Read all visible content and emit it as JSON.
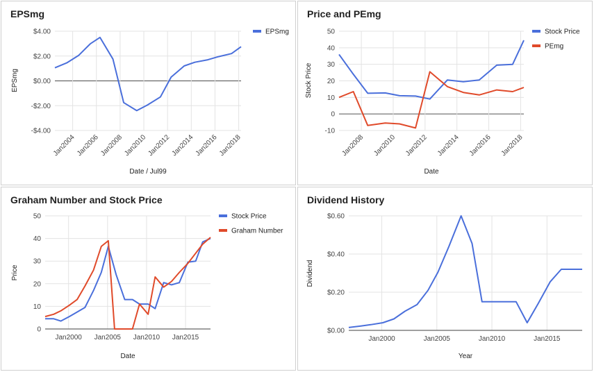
{
  "colors": {
    "blue": "#4a6fdb",
    "red": "#e04a2a",
    "grid": "#e3e3e3",
    "zero": "#666666"
  },
  "chart_data": [
    {
      "type": "line",
      "title": "EPSmg",
      "xlabel": "Date / Jul99",
      "ylabel": "EPSmg",
      "xlim": [
        2002.5,
        2018.2
      ],
      "ylim": [
        -4,
        4
      ],
      "x_ticks": [
        2004,
        2006,
        2008,
        2010,
        2012,
        2014,
        2016,
        2018
      ],
      "x_tick_labels": [
        "Jan2004",
        "Jan2006",
        "Jan2008",
        "Jan2010",
        "Jan2012",
        "Jan2014",
        "Jan2016",
        "Jan2018"
      ],
      "y_ticks": [
        -4,
        -2,
        0,
        2,
        4
      ],
      "y_tick_labels": [
        "-$4.00",
        "-$2.00",
        "$0.00",
        "$2.00",
        "$4.00"
      ],
      "legend_position": "right",
      "series": [
        {
          "name": "EPSmg",
          "color": "#4a6fdb",
          "x": [
            2002.5,
            2003.5,
            2004.5,
            2005.5,
            2006.3,
            2007.4,
            2008.3,
            2009.4,
            2010.3,
            2011.4,
            2012.3,
            2013.4,
            2014.3,
            2015.4,
            2016.3,
            2017.4,
            2018.2
          ],
          "y": [
            1.05,
            1.45,
            2.05,
            3.0,
            3.5,
            1.75,
            -1.75,
            -2.4,
            -1.95,
            -1.3,
            0.3,
            1.2,
            1.5,
            1.7,
            1.95,
            2.2,
            2.75
          ]
        }
      ]
    },
    {
      "type": "line",
      "title": "Price and PEmg",
      "xlabel": "Date",
      "ylabel": "Stock Price",
      "xlim": [
        2006.6,
        2018.2
      ],
      "ylim": [
        -10,
        50
      ],
      "x_ticks": [
        2008,
        2010,
        2012,
        2014,
        2016,
        2018
      ],
      "x_tick_labels": [
        "Jan2008",
        "Jan2010",
        "Jan2012",
        "Jan2014",
        "Jan2016",
        "Jan2018"
      ],
      "y_ticks": [
        -10,
        0,
        10,
        20,
        30,
        40,
        50
      ],
      "y_tick_labels": [
        "-10",
        "0",
        "10",
        "20",
        "30",
        "40",
        "50"
      ],
      "legend_position": "right",
      "series": [
        {
          "name": "Stock Price",
          "color": "#4a6fdb",
          "x": [
            2006.6,
            2007.5,
            2008.4,
            2009.5,
            2010.4,
            2011.4,
            2012.3,
            2013.4,
            2014.4,
            2015.4,
            2016.5,
            2017.5,
            2018.2
          ],
          "y": [
            36,
            24,
            12.5,
            12.7,
            11,
            10.8,
            9,
            20.5,
            19.5,
            20.5,
            29.5,
            30,
            44.5
          ]
        },
        {
          "name": "PEmg",
          "color": "#e04a2a",
          "x": [
            2006.6,
            2007.5,
            2008.4,
            2009.5,
            2010.4,
            2011.4,
            2012.3,
            2013.4,
            2014.4,
            2015.4,
            2016.5,
            2017.5,
            2018.2
          ],
          "y": [
            10,
            13.5,
            -7,
            -5.5,
            -6,
            -8.5,
            25.5,
            16.5,
            13,
            11.5,
            14.5,
            13.5,
            16
          ]
        }
      ]
    },
    {
      "type": "line",
      "title": "Graham Number and Stock Price",
      "xlabel": "Date",
      "ylabel": "Price",
      "xlim": [
        1997,
        2018.2
      ],
      "ylim": [
        0,
        50
      ],
      "x_ticks": [
        2000,
        2005,
        2010,
        2015
      ],
      "x_tick_labels": [
        "Jan2000",
        "Jan2005",
        "Jan2010",
        "Jan2015"
      ],
      "y_ticks": [
        0,
        10,
        20,
        30,
        40,
        50
      ],
      "y_tick_labels": [
        "0",
        "10",
        "20",
        "30",
        "40",
        "50"
      ],
      "legend_position": "right",
      "series": [
        {
          "name": "Stock Price",
          "color": "#4a6fdb",
          "x": [
            1997,
            1998.1,
            1999,
            2000.1,
            2001.1,
            2002.1,
            2003.2,
            2004.2,
            2005.1,
            2006.1,
            2007.2,
            2008.2,
            2009.1,
            2010.2,
            2011.1,
            2012.2,
            2013.2,
            2014.2,
            2015.3,
            2016.3,
            2017.2,
            2018.2
          ],
          "y": [
            4.5,
            4.5,
            3.5,
            5.5,
            7.5,
            9.5,
            17,
            25,
            36.5,
            24,
            13,
            13,
            11,
            11,
            9,
            20.5,
            19.5,
            20.5,
            29.5,
            30,
            38.5,
            40
          ]
        },
        {
          "name": "Graham Number",
          "color": "#e04a2a",
          "x": [
            1997,
            1998.1,
            1999,
            2000.1,
            2001.1,
            2002.1,
            2003.2,
            2004.2,
            2005.1,
            2005.9,
            2006.1,
            2007.2,
            2008.2,
            2009.1,
            2010.2,
            2011.1,
            2012.2,
            2013.2,
            2014.2,
            2015.3,
            2016.3,
            2017.2,
            2018.2
          ],
          "y": [
            5.5,
            6.5,
            8,
            10.5,
            13,
            19,
            26,
            36.5,
            39,
            0,
            0,
            0,
            0,
            11,
            6.5,
            23,
            18.5,
            21,
            25,
            29,
            33.5,
            37.5,
            40.5
          ]
        }
      ]
    },
    {
      "type": "line",
      "title": "Dividend History",
      "xlabel": "Year",
      "ylabel": "Dividend",
      "xlim": [
        1997,
        2018.2
      ],
      "ylim": [
        0,
        0.6
      ],
      "x_ticks": [
        2000,
        2005,
        2010,
        2015
      ],
      "x_tick_labels": [
        "Jan2000",
        "Jan2005",
        "Jan2010",
        "Jan2015"
      ],
      "y_ticks": [
        0,
        0.2,
        0.4,
        0.6
      ],
      "y_tick_labels": [
        "$0.00",
        "$0.20",
        "$0.40",
        "$0.60"
      ],
      "series": [
        {
          "name": "",
          "color": "#4a6fdb",
          "x": [
            1997,
            1998.1,
            1999,
            2000.1,
            2001.1,
            2002.1,
            2003.2,
            2004.2,
            2005.1,
            2006.1,
            2007.2,
            2008.2,
            2009.1,
            2010.2,
            2011.1,
            2012.2,
            2013.2,
            2014.2,
            2015.3,
            2016.3,
            2017.2,
            2018.2
          ],
          "y": [
            0.015,
            0.023,
            0.03,
            0.04,
            0.06,
            0.1,
            0.135,
            0.21,
            0.305,
            0.44,
            0.6,
            0.455,
            0.15,
            0.15,
            0.15,
            0.15,
            0.04,
            0.14,
            0.255,
            0.32,
            0.32,
            0.32
          ]
        }
      ]
    }
  ]
}
